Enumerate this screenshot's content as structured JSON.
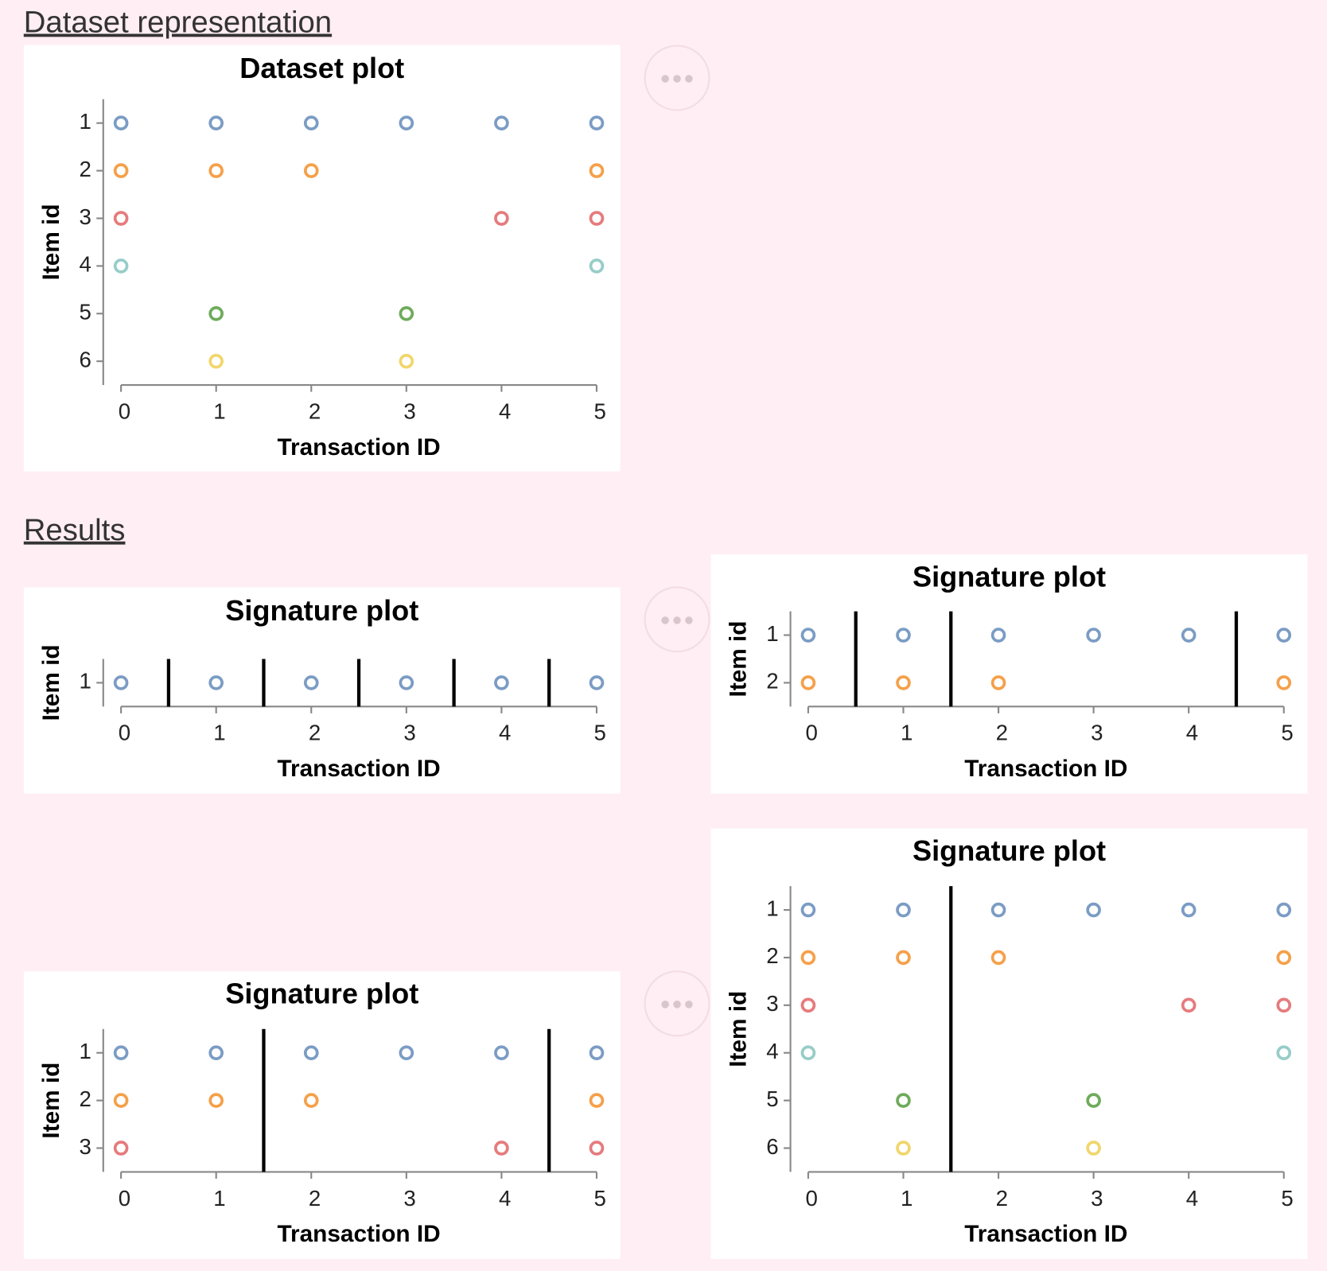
{
  "headings": [
    "Dataset representation",
    "Results"
  ],
  "chart_data": [
    {
      "type": "scatter",
      "title": "Dataset plot",
      "xlabel": "Transaction ID",
      "ylabel": "Item id",
      "xlim": [
        0,
        5
      ],
      "ylim": [
        6.5,
        0.5
      ],
      "xticks": [
        0,
        1,
        2,
        3,
        4,
        5
      ],
      "yticks": [
        1,
        2,
        3,
        4,
        5,
        6
      ],
      "separators": [],
      "series": [
        {
          "color": "#7b9cc4",
          "x": [
            0,
            1,
            2,
            3,
            4,
            5
          ],
          "values": [
            1,
            1,
            1,
            1,
            1,
            1
          ]
        },
        {
          "color": "#f5a04a",
          "x": [
            0,
            1,
            2,
            5
          ],
          "values": [
            2,
            2,
            2,
            2
          ]
        },
        {
          "color": "#e57b7d",
          "x": [
            0,
            4,
            5
          ],
          "values": [
            3,
            3,
            3
          ]
        },
        {
          "color": "#97cdc8",
          "x": [
            0,
            5
          ],
          "values": [
            4,
            4
          ]
        },
        {
          "color": "#6fab5c",
          "x": [
            1,
            3
          ],
          "values": [
            5,
            5
          ]
        },
        {
          "color": "#f1d66b",
          "x": [
            1,
            3
          ],
          "values": [
            6,
            6
          ]
        }
      ]
    },
    {
      "type": "scatter",
      "title": "Signature plot",
      "xlabel": "Transaction ID",
      "ylabel": "Item id",
      "xlim": [
        0,
        5
      ],
      "ylim": [
        1.5,
        0.5
      ],
      "xticks": [
        0,
        1,
        2,
        3,
        4,
        5
      ],
      "yticks": [
        1
      ],
      "separators": [
        0.5,
        1.5,
        2.5,
        3.5,
        4.5
      ],
      "series": [
        {
          "color": "#7b9cc4",
          "x": [
            0,
            1,
            2,
            3,
            4,
            5
          ],
          "values": [
            1,
            1,
            1,
            1,
            1,
            1
          ]
        }
      ]
    },
    {
      "type": "scatter",
      "title": "Signature plot",
      "xlabel": "Transaction ID",
      "ylabel": "Item id",
      "xlim": [
        0,
        5
      ],
      "ylim": [
        2.5,
        0.5
      ],
      "xticks": [
        0,
        1,
        2,
        3,
        4,
        5
      ],
      "yticks": [
        1,
        2
      ],
      "separators": [
        0.5,
        1.5,
        4.5
      ],
      "series": [
        {
          "color": "#7b9cc4",
          "x": [
            0,
            1,
            2,
            3,
            4,
            5
          ],
          "values": [
            1,
            1,
            1,
            1,
            1,
            1
          ]
        },
        {
          "color": "#f5a04a",
          "x": [
            0,
            1,
            2,
            5
          ],
          "values": [
            2,
            2,
            2,
            2
          ]
        }
      ]
    },
    {
      "type": "scatter",
      "title": "Signature plot",
      "xlabel": "Transaction ID",
      "ylabel": "Item id",
      "xlim": [
        0,
        5
      ],
      "ylim": [
        3.5,
        0.5
      ],
      "xticks": [
        0,
        1,
        2,
        3,
        4,
        5
      ],
      "yticks": [
        1,
        2,
        3
      ],
      "separators": [
        1.5,
        4.5
      ],
      "series": [
        {
          "color": "#7b9cc4",
          "x": [
            0,
            1,
            2,
            3,
            4,
            5
          ],
          "values": [
            1,
            1,
            1,
            1,
            1,
            1
          ]
        },
        {
          "color": "#f5a04a",
          "x": [
            0,
            1,
            2,
            5
          ],
          "values": [
            2,
            2,
            2,
            2
          ]
        },
        {
          "color": "#e57b7d",
          "x": [
            0,
            4,
            5
          ],
          "values": [
            3,
            3,
            3
          ]
        }
      ]
    },
    {
      "type": "scatter",
      "title": "Signature plot",
      "xlabel": "Transaction ID",
      "ylabel": "Item id",
      "xlim": [
        0,
        5
      ],
      "ylim": [
        6.5,
        0.5
      ],
      "xticks": [
        0,
        1,
        2,
        3,
        4,
        5
      ],
      "yticks": [
        1,
        2,
        3,
        4,
        5,
        6
      ],
      "separators": [
        1.5
      ],
      "series": [
        {
          "color": "#7b9cc4",
          "x": [
            0,
            1,
            2,
            3,
            4,
            5
          ],
          "values": [
            1,
            1,
            1,
            1,
            1,
            1
          ]
        },
        {
          "color": "#f5a04a",
          "x": [
            0,
            1,
            2,
            5
          ],
          "values": [
            2,
            2,
            2,
            2
          ]
        },
        {
          "color": "#e57b7d",
          "x": [
            0,
            4,
            5
          ],
          "values": [
            3,
            3,
            3
          ]
        },
        {
          "color": "#97cdc8",
          "x": [
            0,
            5
          ],
          "values": [
            4,
            4
          ]
        },
        {
          "color": "#6fab5c",
          "x": [
            1,
            3
          ],
          "values": [
            5,
            5
          ]
        },
        {
          "color": "#f1d66b",
          "x": [
            1,
            3
          ],
          "values": [
            6,
            6
          ]
        }
      ]
    }
  ]
}
